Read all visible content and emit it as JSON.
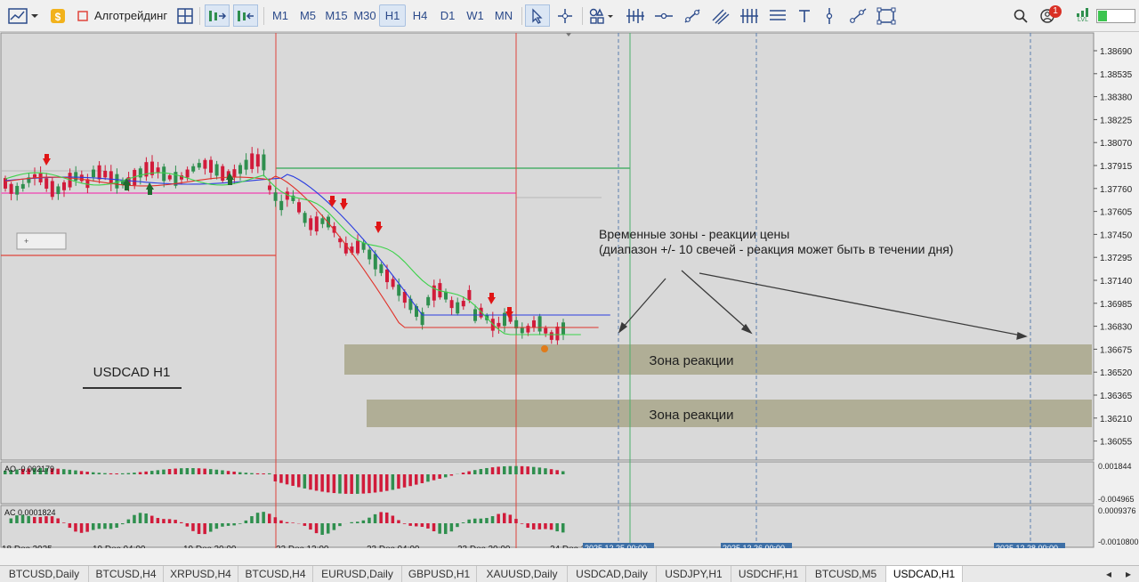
{
  "toolbar": {
    "algo_label": "Алготрейдинг",
    "timeframes": [
      "M1",
      "M5",
      "M15",
      "M30",
      "H1",
      "H4",
      "D1",
      "W1",
      "MN"
    ],
    "active_timeframe": "H1",
    "notification_count": "1",
    "lvl_label": "LVL"
  },
  "chart": {
    "symbol_label": "USDCAD H1",
    "annotation_line1": "Временные зоны - реакции цены",
    "annotation_line2": "(диапазон +/- 10 свечей - реакция может быть в течении дня)",
    "zone1_label": "Зона реакции",
    "zone2_label": "Зона реакции",
    "price_axis": [
      "1.38690",
      "1.38535",
      "1.38380",
      "1.38225",
      "1.38070",
      "1.37915",
      "1.37760",
      "1.37605",
      "1.37450",
      "1.37295",
      "1.37140",
      "1.36985",
      "1.36830",
      "1.36675",
      "1.36520",
      "1.36365",
      "1.36210",
      "1.36055"
    ],
    "time_axis": [
      "18 Dec 2025",
      "19 Dec 04:00",
      "19 Dec 20:00",
      "22 Dec 12:00",
      "23 Dec 04:00",
      "23 Dec 20:00",
      "24 Dec 1"
    ],
    "future_labels": [
      "2025.12.25 00:00",
      "2025.12.26 00:00",
      "2025.12.28 00:00"
    ],
    "ao_label": "AO -0.002179",
    "ao_axis": [
      "0.001844",
      "-0.004965"
    ],
    "ac_label": "AC 0.0001824",
    "ac_axis": [
      "0.0009376",
      "-0.0010800"
    ],
    "colors": {
      "bull": "#2f8f4e",
      "bear": "#d11b3a",
      "zone": "#b0ae96",
      "background": "#d9d9d9"
    }
  },
  "tabs": [
    "BTCUSD,Daily",
    "BTCUSD,H4",
    "XRPUSD,H4",
    "BTCUSD,H4",
    "EURUSD,Daily",
    "GBPUSD,H1",
    "XAUUSD,Daily",
    "USDCAD,Daily",
    "USDJPY,H1",
    "USDCHF,H1",
    "BTCUSD,M5",
    "USDCAD,H1"
  ],
  "active_tab": "USDCAD,H1"
}
